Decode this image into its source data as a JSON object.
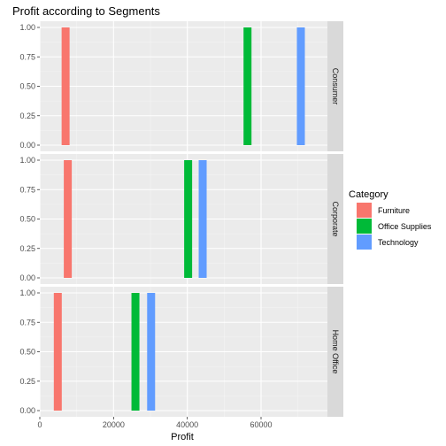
{
  "chart_data": {
    "type": "bar",
    "title": "Profit according to Segments",
    "xlabel": "Profit",
    "ylabel": "",
    "xlim": [
      0,
      78000
    ],
    "ylim": [
      0,
      1
    ],
    "x_ticks": [
      0,
      20000,
      40000,
      60000
    ],
    "x_tick_labels": [
      "0",
      "20000",
      "40000",
      "60000"
    ],
    "y_ticks": [
      0,
      0.25,
      0.5,
      0.75,
      1
    ],
    "y_tick_labels": [
      "0.00",
      "0.25",
      "0.50",
      "0.75",
      "1.00"
    ],
    "grid": true,
    "legend": {
      "title": "Category",
      "placement": "right",
      "entries": [
        {
          "name": "Furniture",
          "color": "#F8766D"
        },
        {
          "name": "Office Supplies",
          "color": "#00BA38"
        },
        {
          "name": "Technology",
          "color": "#619CFF"
        }
      ]
    },
    "facets": [
      {
        "label": "Consumer",
        "bars": [
          {
            "category": "Furniture",
            "profit": 6991,
            "count": 1
          },
          {
            "category": "Office Supplies",
            "profit": 56330,
            "count": 1
          },
          {
            "category": "Technology",
            "profit": 70798,
            "count": 1
          }
        ]
      },
      {
        "label": "Corporate",
        "bars": [
          {
            "category": "Furniture",
            "profit": 7584,
            "count": 1
          },
          {
            "category": "Office Supplies",
            "profit": 40227,
            "count": 1
          },
          {
            "category": "Technology",
            "profit": 44167,
            "count": 1
          }
        ]
      },
      {
        "label": "Home Office",
        "bars": [
          {
            "category": "Furniture",
            "profit": 4876,
            "count": 1
          },
          {
            "category": "Office Supplies",
            "profit": 25933,
            "count": 1
          },
          {
            "category": "Technology",
            "profit": 30184,
            "count": 1
          }
        ]
      }
    ]
  }
}
